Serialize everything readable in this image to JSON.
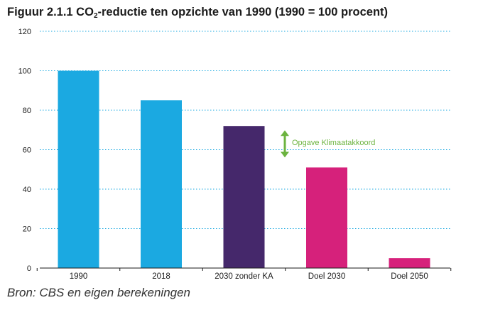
{
  "chart_data": {
    "type": "bar",
    "title_prefix": "Figuur 2.1.1 CO",
    "title_sub": "2",
    "title_suffix": "-reductie ten opzichte van 1990 (1990 = 100 procent)",
    "categories": [
      "1990",
      "2018",
      "2030  zonder KA",
      "Doel 2030",
      "Doel 2050"
    ],
    "values": [
      100,
      85,
      72,
      51,
      5
    ],
    "bar_colors": [
      "#1ba9e1",
      "#1ba9e1",
      "#45286b",
      "#d6217b",
      "#d6217b"
    ],
    "ylim": [
      0,
      120
    ],
    "yticks": [
      0,
      20,
      40,
      60,
      80,
      100,
      120
    ],
    "grid": true,
    "grid_color": "#1ba9e1",
    "annotation": {
      "text": "Opgave Klimaatakkoord",
      "color": "#6cb33f",
      "from_value": 72,
      "to_value": 51
    },
    "source": "Bron: CBS en eigen berekeningen"
  }
}
